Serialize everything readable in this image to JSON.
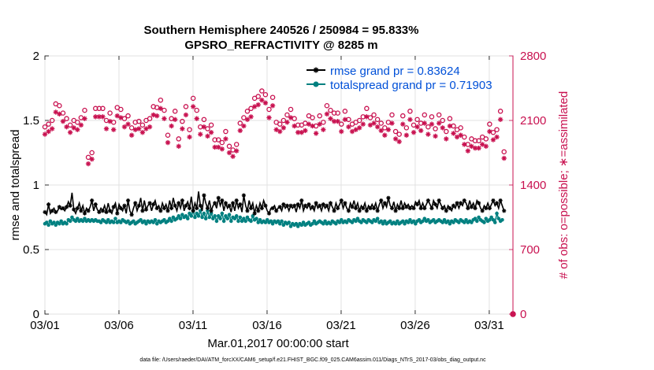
{
  "chart_data": {
    "type": "line",
    "title": "Southern Hemisphere 240526 / 250984 = 95.833%",
    "subtitle": "GPSRO_REFRACTIVITY @ 8285 m",
    "xlabel": "Mar.01,2017 00:00:00 start",
    "ylabel": "rmse and totalspread",
    "y2label": "# of obs: o=possible; ∗=assimilated",
    "ylim": [
      0,
      2
    ],
    "y2lim": [
      0,
      2800
    ],
    "xlim_days": [
      0,
      31.6
    ],
    "x_tick_labels": [
      "03/01",
      "03/06",
      "03/11",
      "03/16",
      "03/21",
      "03/26",
      "03/31"
    ],
    "x_tick_days": [
      0,
      5,
      10,
      15,
      20,
      25,
      30
    ],
    "y_tick_labels": [
      "0",
      "0.5",
      "1",
      "1.5",
      "2"
    ],
    "y_tick_values": [
      0,
      0.5,
      1,
      1.5,
      2
    ],
    "y2_tick_labels": [
      "0",
      "700",
      "1400",
      "2100",
      "2800"
    ],
    "y2_tick_values": [
      0,
      700,
      1400,
      2100,
      2800
    ],
    "grid": true,
    "legend_placement": "top-right",
    "series": [
      {
        "name": "rmse grand pr = 0.83624",
        "color": "#000000",
        "axis": "left",
        "marker": "asterisk",
        "values": [
          0.79,
          0.77,
          0.85,
          0.78,
          0.8,
          0.82,
          0.79,
          0.8,
          0.83,
          0.81,
          0.82,
          0.8,
          0.83,
          0.87,
          0.84,
          0.94,
          0.81,
          0.78,
          0.82,
          0.86,
          0.8,
          0.84,
          0.78,
          0.82,
          0.8,
          0.83,
          0.88,
          0.8,
          0.85,
          0.81,
          0.79,
          0.82,
          0.8,
          0.84,
          0.79,
          0.86,
          0.8,
          0.78,
          0.83,
          0.86,
          0.78,
          0.85,
          0.82,
          0.8,
          0.84,
          0.78,
          0.88,
          0.8,
          0.77,
          0.82,
          0.86,
          0.8,
          0.84,
          0.9,
          0.8,
          0.88,
          0.81,
          0.84,
          0.86,
          0.8,
          0.85,
          0.88,
          0.82,
          0.84,
          0.8,
          0.86,
          0.82,
          0.85,
          0.8,
          0.88,
          0.82,
          0.9,
          0.84,
          0.8,
          0.86,
          0.82,
          0.88,
          0.8,
          0.84,
          0.87,
          0.82,
          0.91,
          0.8,
          0.86,
          0.82,
          0.95,
          0.84,
          0.8,
          0.92,
          0.86,
          0.82,
          0.88,
          0.8,
          0.84,
          0.86,
          0.82,
          0.9,
          0.84,
          0.88,
          0.8,
          0.86,
          0.82,
          0.84,
          0.79,
          0.86,
          0.8,
          0.88,
          0.82,
          0.85,
          0.79,
          0.92,
          0.84,
          0.8,
          0.88,
          0.82,
          0.86,
          0.78,
          0.84,
          0.8,
          0.86,
          0.82,
          0.88,
          0.84,
          0.8,
          0.78,
          0.82,
          0.82,
          0.84,
          0.8,
          0.82,
          0.83,
          0.8,
          0.85,
          0.82,
          0.84,
          0.8,
          0.84,
          0.82,
          0.84,
          0.79,
          0.85,
          0.82,
          0.88,
          0.8,
          0.84,
          0.82,
          0.85,
          0.81,
          0.83,
          0.8,
          0.86,
          0.82,
          0.84,
          0.8,
          0.85,
          0.82,
          0.84,
          0.8,
          0.86,
          0.83,
          0.8,
          0.86,
          0.82,
          0.85,
          0.88,
          0.82,
          0.86,
          0.82,
          0.8,
          0.86,
          0.83,
          0.88,
          0.82,
          0.86,
          0.8,
          0.84,
          0.82,
          0.86,
          0.8,
          0.84,
          0.82,
          0.85,
          0.82,
          0.86,
          0.8,
          0.85,
          0.88,
          0.82,
          0.86,
          0.83,
          0.9,
          0.84,
          0.82,
          0.87,
          0.8,
          0.85,
          0.82,
          0.88,
          0.82,
          0.86,
          0.83,
          0.85,
          0.82,
          0.84,
          0.82,
          0.87,
          0.85,
          0.88,
          0.82,
          0.86,
          0.82,
          0.85,
          0.88,
          0.85,
          0.82,
          0.88,
          0.85,
          0.82,
          0.88,
          0.85,
          0.82,
          0.84,
          0.8,
          0.84,
          0.82,
          0.8,
          0.84,
          0.82,
          0.86,
          0.82,
          0.86,
          0.84,
          0.88,
          0.86,
          0.82,
          0.88,
          0.83,
          0.86,
          0.82,
          0.88,
          0.86,
          0.82,
          0.8,
          0.84,
          0.82,
          0.86,
          0.82,
          0.85,
          0.88,
          0.84,
          0.86,
          0.82,
          0.88,
          0.84,
          0.8
        ]
      },
      {
        "name": "totalspread grand pr = 0.71903",
        "color": "#008080",
        "axis": "left",
        "marker": "circle",
        "values": [
          0.7,
          0.71,
          0.69,
          0.72,
          0.7,
          0.71,
          0.69,
          0.71,
          0.7,
          0.72,
          0.7,
          0.71,
          0.7,
          0.73,
          0.72,
          0.75,
          0.73,
          0.72,
          0.74,
          0.72,
          0.73,
          0.72,
          0.74,
          0.72,
          0.73,
          0.72,
          0.73,
          0.72,
          0.73,
          0.72,
          0.72,
          0.71,
          0.73,
          0.72,
          0.71,
          0.73,
          0.71,
          0.72,
          0.71,
          0.74,
          0.71,
          0.72,
          0.71,
          0.73,
          0.72,
          0.71,
          0.72,
          0.7,
          0.71,
          0.72,
          0.7,
          0.71,
          0.72,
          0.73,
          0.71,
          0.72,
          0.7,
          0.72,
          0.71,
          0.72,
          0.71,
          0.73,
          0.7,
          0.72,
          0.71,
          0.72,
          0.73,
          0.71,
          0.72,
          0.74,
          0.72,
          0.75,
          0.73,
          0.74,
          0.76,
          0.74,
          0.77,
          0.75,
          0.76,
          0.74,
          0.78,
          0.76,
          0.8,
          0.75,
          0.78,
          0.76,
          0.8,
          0.75,
          0.78,
          0.74,
          0.8,
          0.75,
          0.78,
          0.74,
          0.76,
          0.72,
          0.76,
          0.74,
          0.78,
          0.72,
          0.76,
          0.74,
          0.77,
          0.72,
          0.75,
          0.74,
          0.76,
          0.72,
          0.75,
          0.72,
          0.74,
          0.72,
          0.75,
          0.73,
          0.72,
          0.76,
          0.73,
          0.74,
          0.71,
          0.73,
          0.71,
          0.72,
          0.71,
          0.73,
          0.71,
          0.72,
          0.7,
          0.72,
          0.71,
          0.72,
          0.7,
          0.72,
          0.69,
          0.71,
          0.7,
          0.71,
          0.68,
          0.7,
          0.69,
          0.7,
          0.68,
          0.7,
          0.69,
          0.71,
          0.69,
          0.7,
          0.71,
          0.69,
          0.7,
          0.72,
          0.7,
          0.71,
          0.72,
          0.71,
          0.7,
          0.72,
          0.7,
          0.71,
          0.7,
          0.72,
          0.71,
          0.7,
          0.72,
          0.71,
          0.73,
          0.71,
          0.72,
          0.71,
          0.73,
          0.72,
          0.71,
          0.73,
          0.72,
          0.74,
          0.72,
          0.71,
          0.73,
          0.72,
          0.71,
          0.73,
          0.72,
          0.71,
          0.73,
          0.72,
          0.74,
          0.71,
          0.72,
          0.7,
          0.72,
          0.7,
          0.71,
          0.72,
          0.7,
          0.71,
          0.7,
          0.72,
          0.7,
          0.71,
          0.72,
          0.7,
          0.72,
          0.71,
          0.73,
          0.71,
          0.72,
          0.7,
          0.72,
          0.73,
          0.71,
          0.72,
          0.74,
          0.72,
          0.73,
          0.71,
          0.72,
          0.73,
          0.71,
          0.72,
          0.73,
          0.72,
          0.71,
          0.73,
          0.71,
          0.72,
          0.7,
          0.72,
          0.71,
          0.73,
          0.72,
          0.71,
          0.73,
          0.72,
          0.71,
          0.73,
          0.71,
          0.72,
          0.71,
          0.73,
          0.74,
          0.72,
          0.75,
          0.73,
          0.72,
          0.71,
          0.74,
          0.72,
          0.73,
          0.75,
          0.73,
          0.71,
          0.78,
          0.74,
          0.72,
          0.73
        ]
      },
      {
        "name": "# of obs possible",
        "color": "#c8104f",
        "axis": "right",
        "marker": "open-circle",
        "values": [
          2030,
          2090,
          2060,
          2120,
          2100,
          1900,
          2280,
          2200,
          2260,
          2190,
          2180,
          2200,
          2120,
          2090,
          2050,
          2200,
          2100,
          2060,
          2080,
          2060,
          2130,
          2290,
          2210,
          1760,
          1700,
          1680,
          1750,
          2160,
          2230,
          2180,
          2230,
          2270,
          2230,
          2300,
          2100,
          2150,
          2180,
          2000,
          2080,
          2300,
          2240,
          2120,
          2220,
          2190,
          2120,
          2270,
          2150,
          2030,
          2020,
          2050,
          2080,
          2200,
          2090,
          2220,
          2050,
          2200,
          2100,
          2060,
          2120,
          2170,
          2250,
          2200,
          2240,
          2260,
          2320,
          2170,
          2210,
          2080,
          1940,
          2040,
          2120,
          2100,
          2200,
          2260,
          1900,
          2010,
          2090,
          2170,
          2250,
          2200,
          2000,
          2120,
          2340,
          2340,
          2210,
          1980,
          2030,
          1730,
          2110,
          2080,
          2010,
          2030,
          2050,
          1600,
          1890,
          1960,
          1890,
          1760,
          1860,
          1960,
          1980,
          1760,
          1820,
          2060,
          1780,
          1710,
          1840,
          1840,
          2070,
          2100,
          2130,
          2060,
          2200,
          2180,
          2230,
          2250,
          2340,
          2280,
          2360,
          2400,
          2420,
          2460,
          2380,
          2320,
          2220,
          2200,
          2350,
          2180,
          2080,
          2100,
          2060,
          2160,
          2100,
          2050,
          2160,
          2250,
          2220,
          2150,
          2120,
          2080,
          2050,
          2060,
          2050,
          2020,
          2070,
          2110,
          2150,
          2060,
          2130,
          2090,
          2040,
          2100,
          2150,
          2120,
          2080,
          2140,
          2260,
          2250,
          2210,
          2230,
          2180,
          2120,
          2180,
          2110,
          2060,
          2150,
          2200,
          2220,
          2110,
          2000,
          2060,
          2180,
          2080,
          2100,
          2100,
          2030,
          2140,
          2200,
          2230,
          2170,
          2130,
          2100,
          2160,
          2060,
          2110,
          1940,
          2070,
          2050,
          2020,
          2100,
          2080,
          2030,
          2160,
          2090,
          1980,
          2080,
          1950,
          2040,
          2150,
          2100,
          2020,
          1980,
          2200,
          2080,
          2050,
          1960,
          2110,
          2060,
          2070,
          2120,
          2160,
          2100,
          2030,
          2060,
          2140,
          2050,
          2010,
          2030,
          2160,
          2090,
          2100,
          2040,
          1980,
          2050,
          2120,
          2060,
          2040,
          1980,
          2000,
          1960,
          2020,
          2000,
          1920,
          1860,
          1840,
          1880,
          1900,
          1820,
          1880,
          1940,
          1880,
          1850,
          1920,
          1960,
          1900,
          2000,
          2060,
          2010,
          1970,
          2020,
          2000,
          2300,
          2200,
          1800,
          1760,
          1700,
          1720,
          1680,
          1700,
          1710,
          1720,
          1760,
          1740,
          1780
        ]
      },
      {
        "name": "# of obs assimilated",
        "color": "#c8104f",
        "axis": "right",
        "marker": "asterisk",
        "values": [
          1950,
          2010,
          1980,
          2040,
          2010,
          1820,
          2190,
          2110,
          2170,
          2100,
          2090,
          2110,
          2030,
          2010,
          1970,
          2110,
          2020,
          1980,
          2000,
          1980,
          2050,
          2200,
          2120,
          1690,
          1630,
          1610,
          1680,
          2070,
          2140,
          2090,
          2140,
          2180,
          2140,
          2210,
          2010,
          2060,
          2090,
          1920,
          2000,
          2210,
          2150,
          2040,
          2130,
          2100,
          2030,
          2180,
          2060,
          1950,
          1940,
          1970,
          2000,
          2110,
          2010,
          2130,
          1970,
          2110,
          2010,
          1980,
          2030,
          2080,
          2160,
          2110,
          2150,
          2170,
          2230,
          2080,
          2120,
          2000,
          1860,
          1960,
          2040,
          2020,
          2110,
          2170,
          1820,
          1930,
          2010,
          2080,
          2160,
          2110,
          1920,
          2040,
          2250,
          2250,
          2120,
          1900,
          1950,
          1660,
          2030,
          2000,
          1930,
          1950,
          1970,
          1540,
          1810,
          1880,
          1810,
          1690,
          1790,
          1880,
          1900,
          1690,
          1750,
          1980,
          1710,
          1640,
          1770,
          1770,
          1990,
          2020,
          2040,
          1980,
          2110,
          2090,
          2140,
          2160,
          2250,
          2190,
          2270,
          2300,
          2320,
          2360,
          2290,
          2230,
          2130,
          2110,
          2260,
          2090,
          2000,
          2020,
          1980,
          2080,
          2020,
          1970,
          2080,
          2160,
          2130,
          2060,
          2040,
          2000,
          1970,
          1980,
          1970,
          1940,
          1990,
          2030,
          2060,
          1980,
          2040,
          2010,
          1960,
          2020,
          2060,
          2040,
          2000,
          2060,
          2170,
          2160,
          2120,
          2140,
          2090,
          2040,
          2090,
          2030,
          1980,
          2060,
          2110,
          2130,
          2030,
          1920,
          1980,
          2090,
          2000,
          2020,
          2020,
          1950,
          2060,
          2110,
          2140,
          2080,
          2050,
          2020,
          2070,
          1980,
          2030,
          1860,
          1990,
          1970,
          1940,
          2020,
          2000,
          1950,
          2070,
          2010,
          1900,
          2000,
          1870,
          1960,
          2060,
          2020,
          1940,
          1900,
          2110,
          2000,
          1970,
          1880,
          2030,
          1980,
          1990,
          2040,
          2070,
          2020,
          1950,
          1980,
          2060,
          1970,
          1930,
          1950,
          2070,
          2010,
          2020,
          1960,
          1900,
          1970,
          2040,
          1980,
          1960,
          1900,
          1920,
          1880,
          1940,
          1920,
          1840,
          1780,
          1770,
          1800,
          1820,
          1750,
          1800,
          1860,
          1800,
          1780,
          1840,
          1880,
          1820,
          1920,
          1980,
          1930,
          1890,
          1940,
          1920,
          2210,
          2110,
          1730,
          1690,
          1630,
          1650,
          1610,
          1630,
          1640,
          1650,
          1690,
          1670,
          1710
        ]
      }
    ],
    "last_point_obs_possible": 0,
    "last_point_obs_assimilated": 0
  },
  "legend": {
    "rmse_label": "rmse grand pr = 0.83624",
    "spread_label": "totalspread grand pr = 0.71903"
  },
  "footnote": "data file: /Users/raeder/DAI/ATM_forcXX/CAM6_setup/f.e21.FHIST_BGC.f09_025.CAM6assim.011/Diags_NTrS_2017-03/obs_diag_output.nc",
  "colors": {
    "rmse": "#000000",
    "spread": "#008080",
    "obs": "#c8104f",
    "legend_text": "#0050d8"
  }
}
